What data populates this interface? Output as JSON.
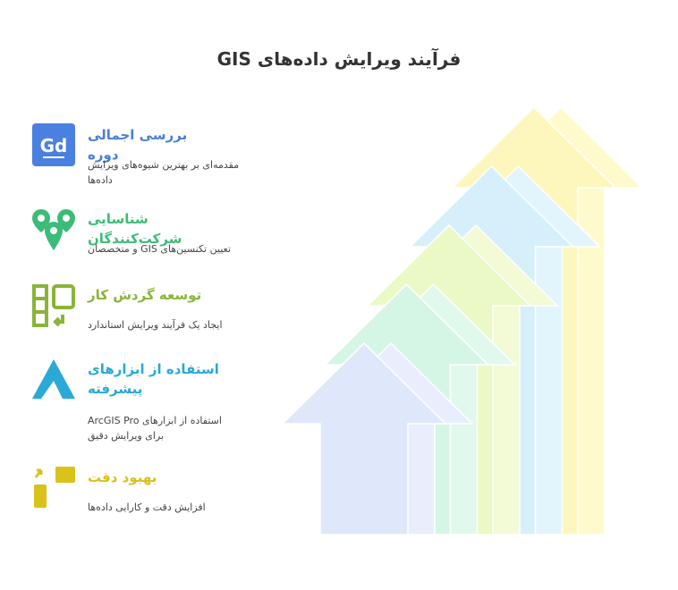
{
  "header": {
    "title": "فرآیند ویرایش داده‌های GIS"
  },
  "items": [
    {
      "title": "بررسی اجمالی دوره",
      "description": [
        "مقدمه‌ای بر بهترین شیوه‌های ویرایش",
        "داده‌ها"
      ]
    },
    {
      "title": "شناسایی شرکت‌کنندگان",
      "description": [
        "تعیین تکنسین‌های GIS و متخصصان"
      ]
    },
    {
      "title": "توسعه گردش کار",
      "description": [
        "ایجاد یک فرآیند ویرایش استاندارد"
      ]
    },
    {
      "title": "استفاده از ابزارهای پیشرفته",
      "description": [
        "استفاده از ابزارهای ArcGIS Pro",
        "برای ویرایش دقیق"
      ]
    },
    {
      "title": "بهبود دقت",
      "description": [
        "افزایش دقت و کارایی داده‌ها"
      ]
    }
  ]
}
